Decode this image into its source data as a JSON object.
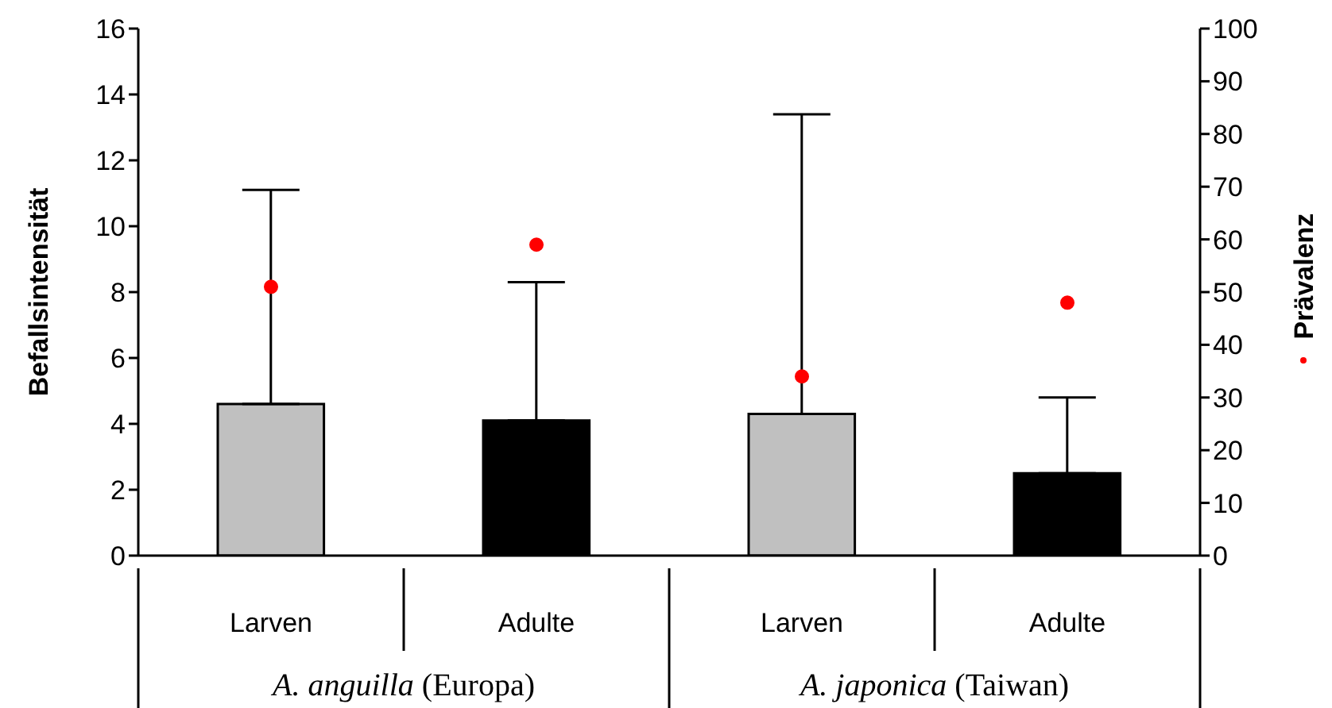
{
  "chart_data": {
    "type": "bar",
    "ylabel": "Befallsintensität",
    "y2label": "Prävalenz",
    "categories": [
      "Larven",
      "Adulte",
      "Larven",
      "Adulte"
    ],
    "annotations": [
      "A. anguilla (Europa)",
      "A. japonica (Taiwan)"
    ],
    "series": [
      {
        "colors": [
          "#c0c0c0",
          "#000000",
          "#c0c0c0",
          "#000000"
        ],
        "values": [
          4.6,
          4.1,
          4.3,
          2.5
        ],
        "errors": [
          [
            4.6,
            11.1
          ],
          [
            4.1,
            8.3
          ],
          [
            4.3,
            13.4
          ],
          [
            2.5,
            4.8
          ]
        ]
      },
      {
        "type": "scatter",
        "axis": "y2",
        "color": "#ff0000",
        "marker": "circle",
        "values": [
          51,
          59,
          34,
          48
        ]
      }
    ],
    "ylim": [
      0,
      16
    ],
    "yticks": [
      0,
      2,
      4,
      6,
      8,
      10,
      12,
      14,
      16
    ],
    "y2lim": [
      0,
      100
    ],
    "y2ticks": [
      0,
      10,
      20,
      30,
      40,
      50,
      60,
      70,
      80,
      90,
      100
    ]
  }
}
